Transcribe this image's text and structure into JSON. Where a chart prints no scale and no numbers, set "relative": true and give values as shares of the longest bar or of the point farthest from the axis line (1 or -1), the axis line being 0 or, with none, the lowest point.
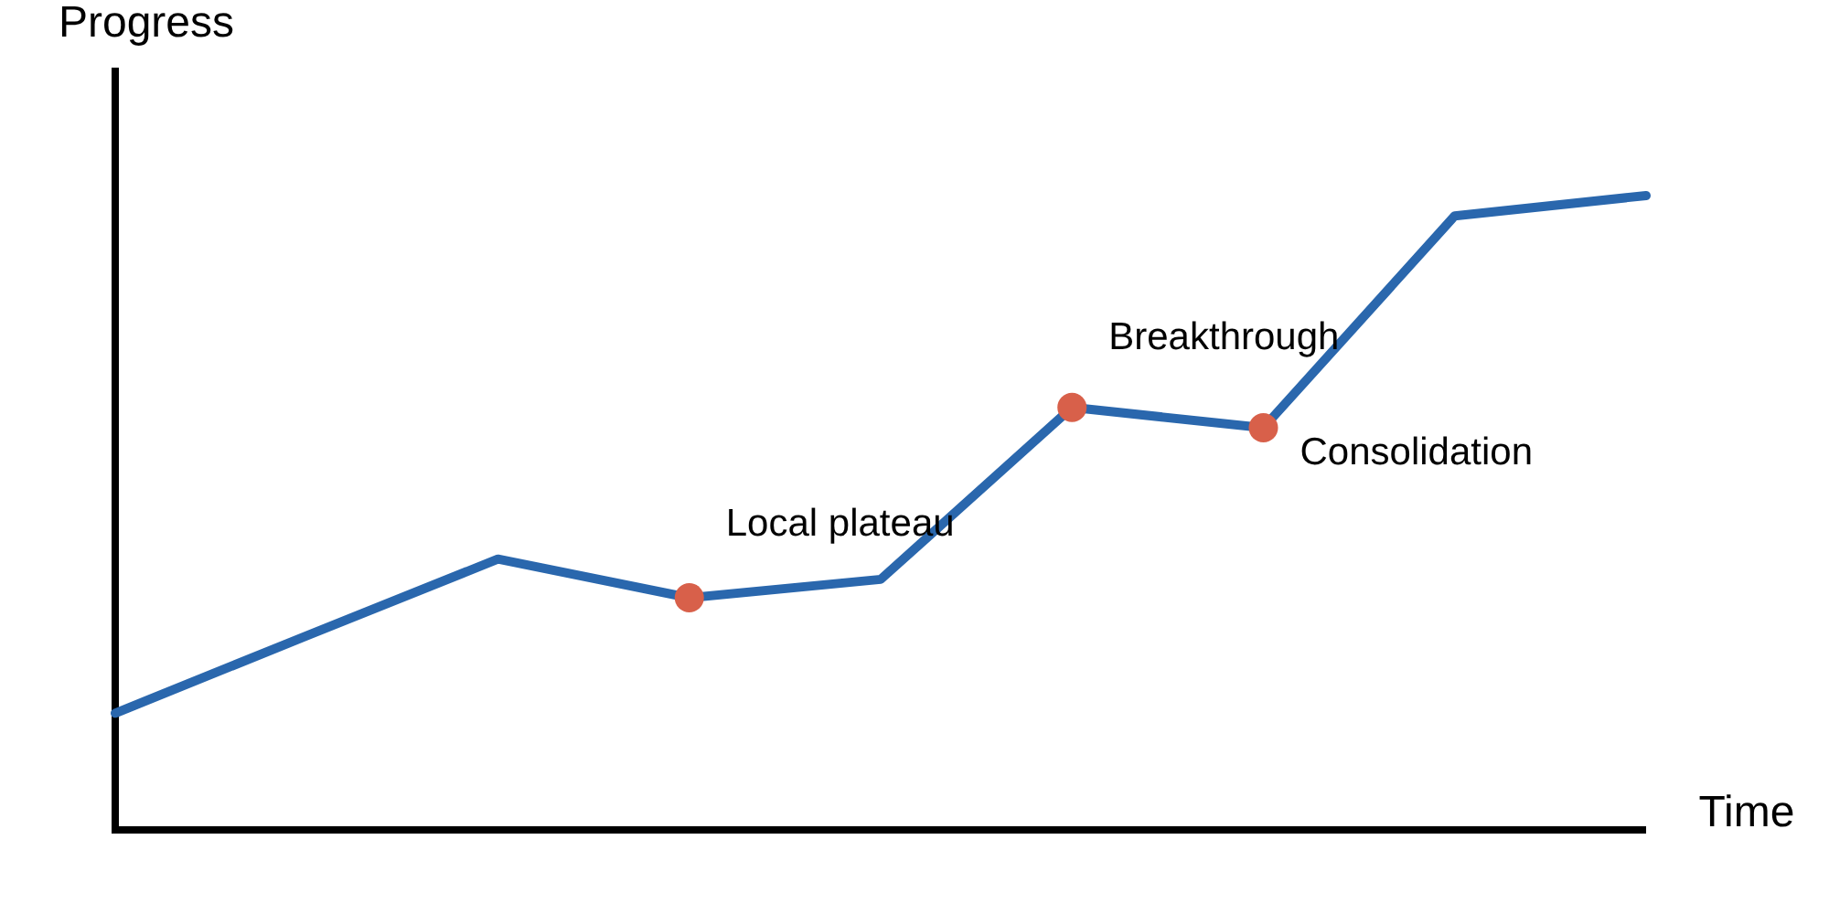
{
  "chart_data": {
    "type": "line",
    "relative": true,
    "xlabel": "Time",
    "ylabel": "Progress",
    "categories": [
      null,
      null,
      null,
      null,
      null,
      null,
      null,
      null,
      null
    ],
    "series": [
      {
        "color": "#2a67ad",
        "values": [
          0.184,
          0.306,
          0.427,
          0.366,
          0.395,
          0.666,
          0.634,
          0.968,
          1
        ]
      }
    ],
    "annotations": [
      "Local plateau",
      "Breakthrough",
      "Consolidation"
    ]
  }
}
